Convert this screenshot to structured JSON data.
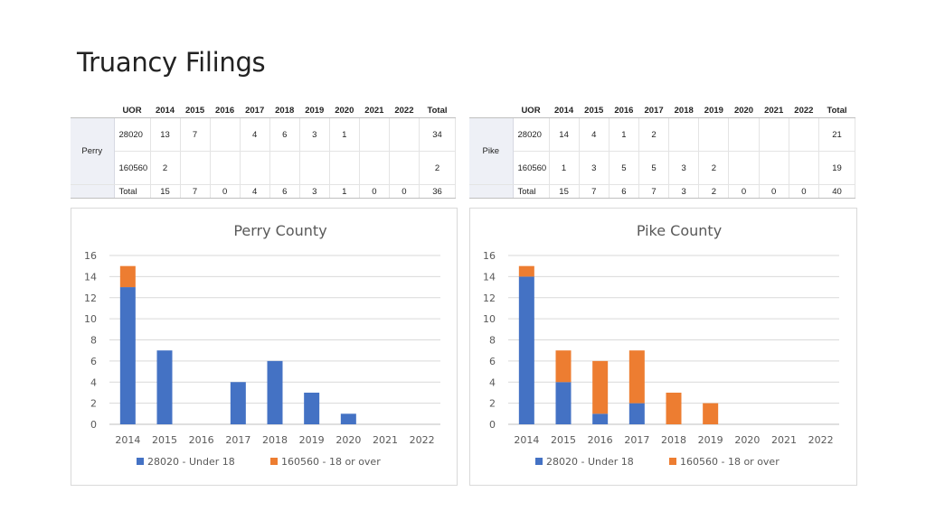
{
  "slide": {
    "title": "Truancy Filings"
  },
  "tables": [
    {
      "county": "Perry",
      "headers": [
        "UOR",
        "2014",
        "2015",
        "2016",
        "2017",
        "2018",
        "2019",
        "2020",
        "2021",
        "2022",
        "Total"
      ],
      "rows": [
        [
          "28020",
          "13",
          "7",
          "",
          "4",
          "6",
          "3",
          "1",
          "",
          "",
          "34"
        ],
        [
          "160560",
          "2",
          "",
          "",
          "",
          "",
          "",
          "",
          "",
          "",
          "2"
        ],
        [
          "Total",
          "15",
          "7",
          "0",
          "4",
          "6",
          "3",
          "1",
          "0",
          "0",
          "36"
        ]
      ]
    },
    {
      "county": "Pike",
      "headers": [
        "UOR",
        "2014",
        "2015",
        "2016",
        "2017",
        "2018",
        "2019",
        "2020",
        "2021",
        "2022",
        "Total"
      ],
      "rows": [
        [
          "28020",
          "14",
          "4",
          "1",
          "2",
          "",
          "",
          "",
          "",
          "",
          "21"
        ],
        [
          "160560",
          "1",
          "3",
          "5",
          "5",
          "3",
          "2",
          "",
          "",
          "",
          "19"
        ],
        [
          "Total",
          "15",
          "7",
          "6",
          "7",
          "3",
          "2",
          "0",
          "0",
          "0",
          "40"
        ]
      ]
    }
  ],
  "chart_data": [
    {
      "type": "bar",
      "stacked": true,
      "title": "Perry County",
      "categories": [
        "2014",
        "2015",
        "2016",
        "2017",
        "2018",
        "2019",
        "2020",
        "2021",
        "2022"
      ],
      "series": [
        {
          "name": "28020 - Under 18",
          "color": "#4472c4",
          "values": [
            13,
            7,
            0,
            4,
            6,
            3,
            1,
            0,
            0
          ]
        },
        {
          "name": "160560 - 18 or over",
          "color": "#ed7d31",
          "values": [
            2,
            0,
            0,
            0,
            0,
            0,
            0,
            0,
            0
          ]
        }
      ],
      "ylim": [
        0,
        16
      ],
      "yticks": [
        "0",
        "2",
        "4",
        "6",
        "8",
        "10",
        "12",
        "14",
        "16"
      ],
      "grid": true,
      "legend": "bottom"
    },
    {
      "type": "bar",
      "stacked": true,
      "title": "Pike County",
      "categories": [
        "2014",
        "2015",
        "2016",
        "2017",
        "2018",
        "2019",
        "2020",
        "2021",
        "2022"
      ],
      "series": [
        {
          "name": "28020 - Under 18",
          "color": "#4472c4",
          "values": [
            14,
            4,
            1,
            2,
            0,
            0,
            0,
            0,
            0
          ]
        },
        {
          "name": "160560 - 18 or over",
          "color": "#ed7d31",
          "values": [
            1,
            3,
            5,
            5,
            3,
            2,
            0,
            0,
            0
          ]
        }
      ],
      "ylim": [
        0,
        16
      ],
      "yticks": [
        "0",
        "2",
        "4",
        "6",
        "8",
        "10",
        "12",
        "14",
        "16"
      ],
      "grid": true,
      "legend": "bottom"
    }
  ]
}
